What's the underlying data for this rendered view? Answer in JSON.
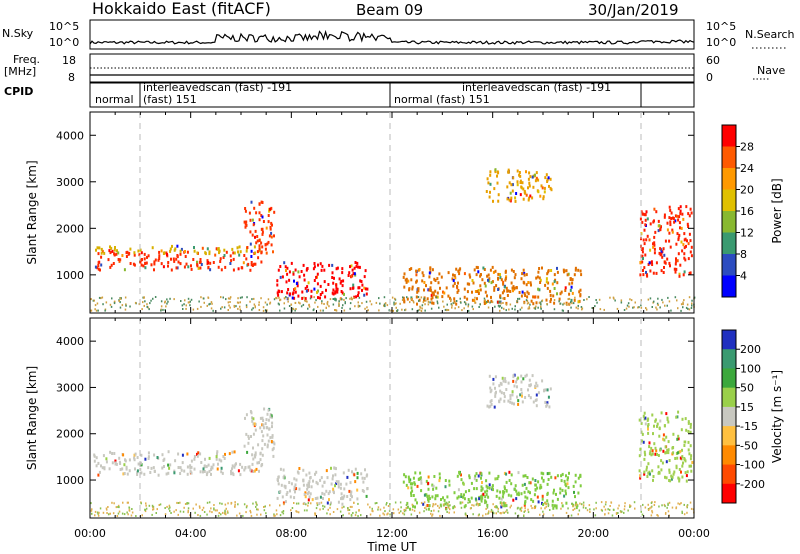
{
  "header": {
    "title": "Hokkaido East (fitACF)",
    "beam": "Beam 09",
    "date": "30/Jan/2019"
  },
  "top_panels": {
    "nsky_label": "N.Sky",
    "nsky_ticks": [
      "10^5",
      "10^0"
    ],
    "nsky_right_ticks": [
      "10^5",
      "10^0"
    ],
    "nsearch_label": "N.Search",
    "freq_label": "Freq.",
    "freq_unit": "[MHz]",
    "freq_ticks": [
      "18",
      "8"
    ],
    "nave_ticks": [
      "60",
      "0"
    ],
    "nave_label": "Nave",
    "cpid_label": "CPID",
    "cpid_segments": [
      {
        "line1": "normal",
        "line2": ""
      },
      {
        "line1": "interleavedscan (fast) -191",
        "line2": "(fast) 151"
      },
      {
        "line1": "normal (fast) 151",
        "line2": ""
      },
      {
        "line1": "interleavedscan (fast) -191",
        "line2": ""
      }
    ]
  },
  "chart_data": [
    {
      "type": "heatmap",
      "title": "",
      "xlabel": "",
      "ylabel": "Slant Range [km]",
      "ylim": [
        180,
        4500
      ],
      "y_ticks": [
        "4000",
        "3000",
        "2000",
        "1000"
      ],
      "colorbar_label": "Power [dB]",
      "colorbar_ticks": [
        "28",
        "24",
        "20",
        "16",
        "12",
        "8",
        "4"
      ],
      "colorbar_colors": [
        "#ff0000",
        "#ff5a00",
        "#ff9900",
        "#e0c000",
        "#88b830",
        "#3a9a70",
        "#2c4cc0",
        "#0000ff"
      ],
      "regions_hours_km_color": [
        [
          0.1,
          6.8,
          1130,
          1520,
          "#ff2a00"
        ],
        [
          0.2,
          6.8,
          1480,
          1650,
          "#d8b000"
        ],
        [
          6.1,
          7.3,
          1500,
          2600,
          "#ff3300"
        ],
        [
          7.4,
          11.0,
          500,
          1300,
          "#ff0000"
        ],
        [
          12.4,
          19.5,
          400,
          1200,
          "#e07000"
        ],
        [
          21.8,
          23.9,
          1000,
          2500,
          "#ff2000"
        ],
        [
          15.7,
          18.3,
          2600,
          3300,
          "#e8a000"
        ]
      ]
    },
    {
      "type": "heatmap",
      "title": "",
      "xlabel": "Time UT",
      "ylabel": "Slant Range [km]",
      "ylim": [
        180,
        4500
      ],
      "y_ticks": [
        "4000",
        "3000",
        "2000",
        "1000"
      ],
      "x_ticks": [
        "00:00",
        "04:00",
        "08:00",
        "12:00",
        "16:00",
        "20:00",
        "00:00"
      ],
      "colorbar_label": "Velocity [m s⁻¹]",
      "colorbar_ticks": [
        "200",
        "100",
        "50",
        "15",
        "-15",
        "-50",
        "-100",
        "-200"
      ],
      "colorbar_colors": [
        "#2030c0",
        "#3a9a70",
        "#3ca83c",
        "#9ad04a",
        "#c8c8c0",
        "#ffc040",
        "#ff8a00",
        "#ff4a00",
        "#ff0000"
      ],
      "regions_hours_km_color": [
        [
          0.1,
          6.8,
          1130,
          1650,
          "#c8c8c0"
        ],
        [
          6.1,
          7.3,
          1500,
          2600,
          "#c8c8c0"
        ],
        [
          7.4,
          11.0,
          500,
          1300,
          "#c8c8c0"
        ],
        [
          12.4,
          19.5,
          400,
          1200,
          "#80cc40"
        ],
        [
          21.8,
          23.9,
          1000,
          2500,
          "#a0d050"
        ],
        [
          15.7,
          18.3,
          2600,
          3300,
          "#c8c8c0"
        ]
      ]
    }
  ]
}
